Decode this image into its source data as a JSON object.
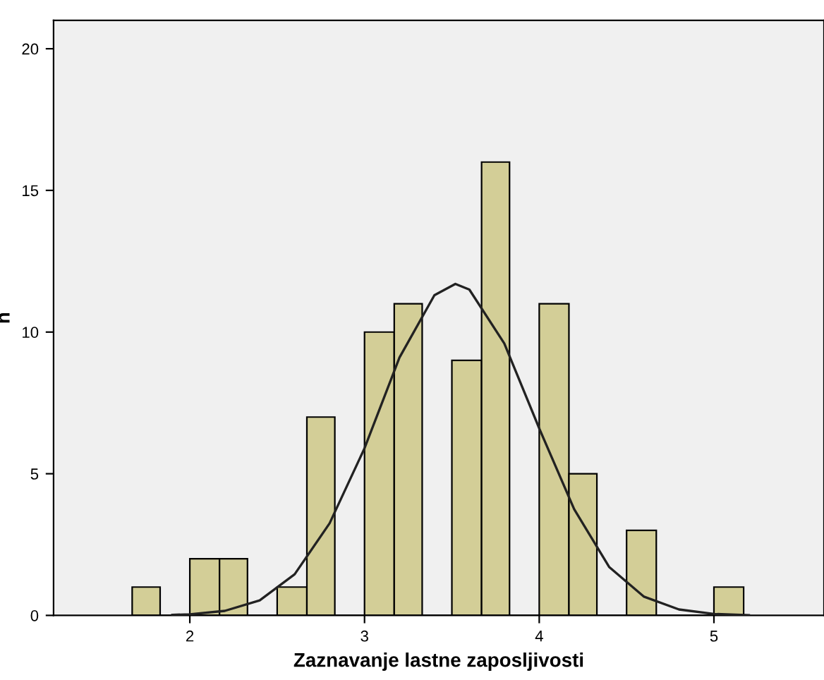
{
  "chart_data": {
    "type": "histogram",
    "xlabel": "Zaznavanje lastne zaposljivosti",
    "ylabel": "n",
    "xlim": [
      1.22,
      5.63
    ],
    "ylim": [
      0,
      21
    ],
    "xticks": [
      2,
      3,
      4,
      5
    ],
    "yticks": [
      0,
      5,
      10,
      15,
      20
    ],
    "grid": false,
    "legend": false,
    "series": [
      {
        "color": "#d3ce97",
        "bins": [
          1.67,
          1.83,
          2,
          2.17,
          2.33,
          2.5,
          2.67,
          2.83,
          3,
          3.17,
          3.33,
          3.5,
          3.67,
          3.83,
          4,
          4.17,
          4.33,
          4.5,
          4.67,
          5,
          5.17
        ],
        "values": [
          1,
          0,
          2,
          2,
          0,
          1,
          7,
          0,
          10,
          11,
          0,
          9,
          16,
          0,
          11,
          5,
          0,
          3,
          0,
          1
        ]
      },
      {
        "type": "line",
        "color": "#222222",
        "x": [
          1.9,
          2.0,
          2.2,
          2.4,
          2.6,
          2.8,
          3.0,
          3.2,
          3.4,
          3.52,
          3.6,
          3.8,
          4.0,
          4.2,
          4.4,
          4.6,
          4.8,
          5.0,
          5.2
        ],
        "values": [
          0.02,
          0.04,
          0.16,
          0.53,
          1.45,
          3.25,
          5.9,
          9.1,
          11.3,
          11.7,
          11.5,
          9.6,
          6.6,
          3.75,
          1.71,
          0.66,
          0.21,
          0.05,
          0.01
        ]
      }
    ]
  }
}
